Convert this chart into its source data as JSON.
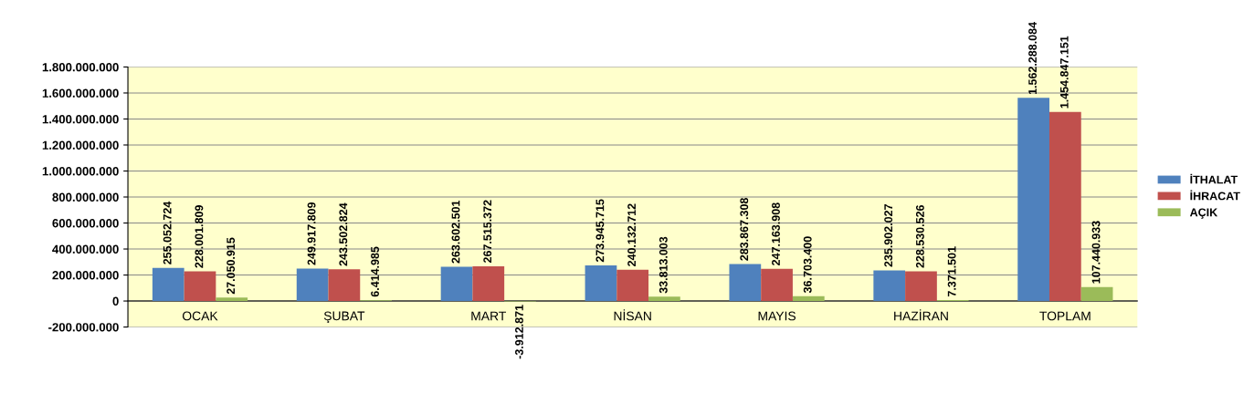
{
  "chart_data": {
    "type": "bar",
    "categories": [
      "OCAK",
      "ŞUBAT",
      "MART",
      "NİSAN",
      "MAYIS",
      "HAZİRAN",
      "TOPLAM"
    ],
    "series": [
      {
        "name": "İTHALAT",
        "color": "#4f81bd",
        "values": [
          255052724,
          249917809,
          263602501,
          273945715,
          283867308,
          235902027,
          1562288084
        ],
        "value_labels": [
          "255.052.724",
          "249.917.809",
          "263.602.501",
          "273.945.715",
          "283.867.308",
          "235.902.027",
          "1.562.288.084"
        ]
      },
      {
        "name": "İHRACAT",
        "color": "#c0504d",
        "values": [
          228001809,
          243502824,
          267515372,
          240132712,
          247163908,
          228530526,
          1454847151
        ],
        "value_labels": [
          "228.001.809",
          "243.502.824",
          "267.515.372",
          "240.132.712",
          "247.163.908",
          "228.530.526",
          "1.454.847.151"
        ]
      },
      {
        "name": "AÇIK",
        "color": "#9bbb59",
        "values": [
          27050915,
          6414985,
          -3912871,
          33813003,
          36703400,
          7371501,
          107440933
        ],
        "value_labels": [
          "27.050.915",
          "6.414.985",
          "-3.912.871",
          "33.813.003",
          "36.703.400",
          "7.371.501",
          "107.440.933"
        ]
      }
    ],
    "ylim": [
      -200000000,
      1800000000
    ],
    "yticks": [
      {
        "value": -200000000,
        "label": "-200.000.000"
      },
      {
        "value": 0,
        "label": "0"
      },
      {
        "value": 200000000,
        "label": "200.000.000"
      },
      {
        "value": 400000000,
        "label": "400.000.000"
      },
      {
        "value": 600000000,
        "label": "600.000.000"
      },
      {
        "value": 800000000,
        "label": "800.000.000"
      },
      {
        "value": 1000000000,
        "label": "1.000.000.000"
      },
      {
        "value": 1200000000,
        "label": "1.200.000.000"
      },
      {
        "value": 1400000000,
        "label": "1.400.000.000"
      },
      {
        "value": 1600000000,
        "label": "1.600.000.000"
      },
      {
        "value": 1800000000,
        "label": "1.800.000.000"
      }
    ],
    "grid": "y",
    "legend": "right"
  }
}
